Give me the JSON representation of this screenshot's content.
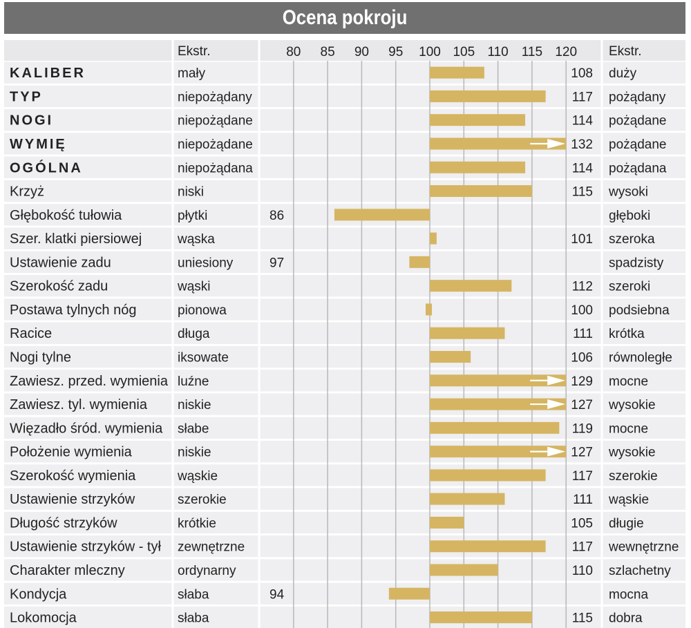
{
  "title": "Ocena pokroju",
  "colors": {
    "bar": "#d5b562",
    "row_stripe": "#efeef0",
    "header_bg": "#e8e7ea",
    "title_bg": "#707070",
    "grid": "#b8b8b8",
    "arrow": "#ffffff"
  },
  "header": {
    "left_extreme": "Ekstr.",
    "right_extreme": "Ekstr."
  },
  "chart_data": {
    "type": "bar",
    "orientation": "horizontal",
    "baseline": 100,
    "xlim": [
      75,
      120
    ],
    "ticks": [
      "80",
      "85",
      "90",
      "95",
      "100",
      "105",
      "110",
      "115",
      "120"
    ],
    "grid": true,
    "rows": [
      {
        "trait": "KALIBER",
        "bold": true,
        "low": "mały",
        "high": "duży",
        "value": 108,
        "left_value": "",
        "right_value": "108",
        "overflow": false
      },
      {
        "trait": "TYP",
        "bold": true,
        "low": "niepożądany",
        "high": "pożądany",
        "value": 117,
        "left_value": "",
        "right_value": "117",
        "overflow": false
      },
      {
        "trait": "NOGI",
        "bold": true,
        "low": "niepożądane",
        "high": "pożądane",
        "value": 114,
        "left_value": "",
        "right_value": "114",
        "overflow": false
      },
      {
        "trait": "WYMIĘ",
        "bold": true,
        "low": "niepożądane",
        "high": "pożądane",
        "value": 132,
        "left_value": "",
        "right_value": "132",
        "overflow": true
      },
      {
        "trait": "OGÓLNA",
        "bold": true,
        "low": "niepożądana",
        "high": "pożądana",
        "value": 114,
        "left_value": "",
        "right_value": "114",
        "overflow": false
      },
      {
        "trait": "Krzyż",
        "bold": false,
        "low": "niski",
        "high": "wysoki",
        "value": 115,
        "left_value": "",
        "right_value": "115",
        "overflow": false
      },
      {
        "trait": "Głębokość tułowia",
        "bold": false,
        "low": "płytki",
        "high": "głęboki",
        "value": 86,
        "left_value": "86",
        "right_value": "",
        "overflow": false
      },
      {
        "trait": "Szer. klatki piersiowej",
        "bold": false,
        "low": "wąska",
        "high": "szeroka",
        "value": 101,
        "left_value": "",
        "right_value": "101",
        "overflow": false
      },
      {
        "trait": "Ustawienie zadu",
        "bold": false,
        "low": "uniesiony",
        "high": "spadzisty",
        "value": 97,
        "left_value": "97",
        "right_value": "",
        "overflow": false
      },
      {
        "trait": "Szerokość zadu",
        "bold": false,
        "low": "wąski",
        "high": "szeroki",
        "value": 112,
        "left_value": "",
        "right_value": "112",
        "overflow": false
      },
      {
        "trait": "Postawa tylnych nóg",
        "bold": false,
        "low": "pionowa",
        "high": "podsiebna",
        "value": 100,
        "left_value": "",
        "right_value": "100",
        "overflow": false
      },
      {
        "trait": "Racice",
        "bold": false,
        "low": "długa",
        "high": "krótka",
        "value": 111,
        "left_value": "",
        "right_value": "111",
        "overflow": false
      },
      {
        "trait": "Nogi tylne",
        "bold": false,
        "low": "iksowate",
        "high": "równoległe",
        "value": 106,
        "left_value": "",
        "right_value": "106",
        "overflow": false
      },
      {
        "trait": "Zawiesz. przed. wymienia",
        "bold": false,
        "low": "luźne",
        "high": "mocne",
        "value": 129,
        "left_value": "",
        "right_value": "129",
        "overflow": true
      },
      {
        "trait": "Zawiesz. tyl. wymienia",
        "bold": false,
        "low": "niskie",
        "high": "wysokie",
        "value": 127,
        "left_value": "",
        "right_value": "127",
        "overflow": true
      },
      {
        "trait": "Więzadło śród. wymienia",
        "bold": false,
        "low": "słabe",
        "high": "mocne",
        "value": 119,
        "left_value": "",
        "right_value": "119",
        "overflow": false
      },
      {
        "trait": "Położenie wymienia",
        "bold": false,
        "low": "niskie",
        "high": "wysokie",
        "value": 127,
        "left_value": "",
        "right_value": "127",
        "overflow": true
      },
      {
        "trait": "Szerokość wymienia",
        "bold": false,
        "low": "wąskie",
        "high": "szerokie",
        "value": 117,
        "left_value": "",
        "right_value": "117",
        "overflow": false
      },
      {
        "trait": "Ustawienie strzyków",
        "bold": false,
        "low": "szerokie",
        "high": "wąskie",
        "value": 111,
        "left_value": "",
        "right_value": "111",
        "overflow": false
      },
      {
        "trait": "Długość strzyków",
        "bold": false,
        "low": "krótkie",
        "high": "długie",
        "value": 105,
        "left_value": "",
        "right_value": "105",
        "overflow": false
      },
      {
        "trait": "Ustawienie strzyków - tył",
        "bold": false,
        "low": "zewnętrzne",
        "high": "wewnętrzne",
        "value": 117,
        "left_value": "",
        "right_value": "117",
        "overflow": false
      },
      {
        "trait": "Charakter mleczny",
        "bold": false,
        "low": "ordynarny",
        "high": "szlachetny",
        "value": 110,
        "left_value": "",
        "right_value": "110",
        "overflow": false
      },
      {
        "trait": "Kondycja",
        "bold": false,
        "low": "słaba",
        "high": "mocna",
        "value": 94,
        "left_value": "94",
        "right_value": "",
        "overflow": false
      },
      {
        "trait": "Lokomocja",
        "bold": false,
        "low": "słaba",
        "high": "dobra",
        "value": 115,
        "left_value": "",
        "right_value": "115",
        "overflow": false
      }
    ]
  }
}
